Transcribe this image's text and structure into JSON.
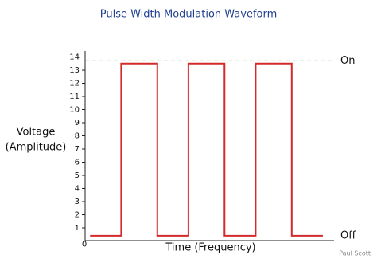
{
  "chart_data": {
    "type": "line",
    "title": "Pulse Width Modulation Waveform",
    "ylabel": [
      "Voltage",
      "(Amplitude)"
    ],
    "xlabel": "Time (Frequency)",
    "credit": "Paul Scott",
    "ylim": [
      0,
      14
    ],
    "yticks": [
      0,
      1,
      2,
      3,
      4,
      5,
      6,
      7,
      8,
      9,
      10,
      11,
      12,
      13,
      14
    ],
    "xlim": [
      0,
      10
    ],
    "series": [
      {
        "color": "#d42a2a",
        "x": [
          0.2,
          1.45,
          1.45,
          2.9,
          2.9,
          4.15,
          4.15,
          5.6,
          5.6,
          6.85,
          6.85,
          8.3,
          8.3,
          9.55
        ],
        "values": [
          0.4,
          0.4,
          13.5,
          13.5,
          0.4,
          0.4,
          13.5,
          13.5,
          0.4,
          0.4,
          13.5,
          13.5,
          0.4,
          0.4
        ]
      }
    ],
    "reference_line": {
      "value": 13.7,
      "color": "#3a9e3a",
      "label": "On"
    },
    "low_label": {
      "value": 0.4,
      "label": "Off"
    }
  }
}
